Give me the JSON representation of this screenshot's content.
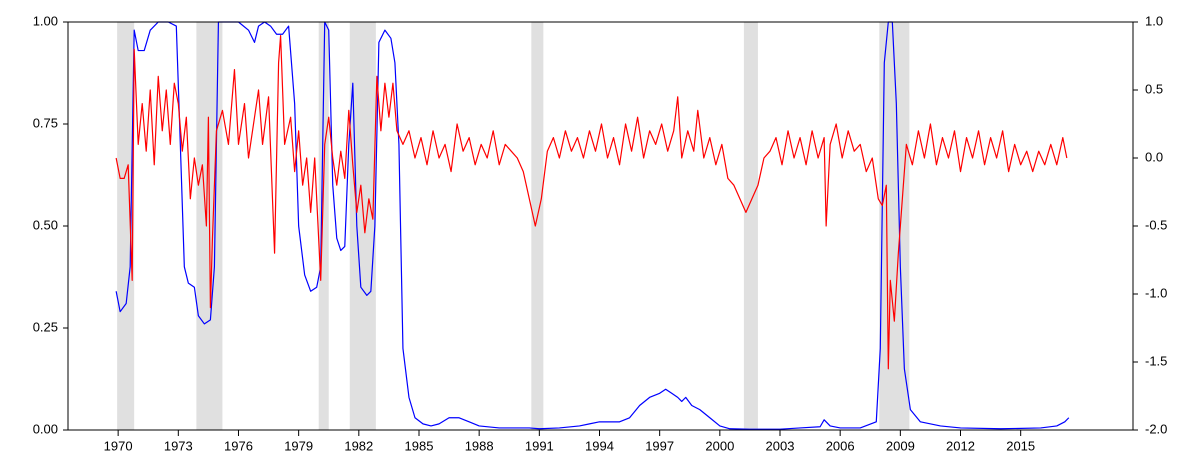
{
  "chart_data": {
    "type": "line",
    "xlim": [
      1967.5,
      2020.6
    ],
    "xticks": [
      1970,
      1973,
      1976,
      1979,
      1982,
      1985,
      1988,
      1991,
      1994,
      1997,
      2000,
      2003,
      2006,
      2009,
      2012,
      2015
    ],
    "ylim": [
      0,
      1
    ],
    "yticks": [
      {
        "value": 0,
        "label": "0.00"
      },
      {
        "value": 0.25,
        "label": "0.25"
      },
      {
        "value": 0.5,
        "label": "0.50"
      },
      {
        "value": 0.75,
        "label": "0.75"
      },
      {
        "value": 1,
        "label": "1.00"
      }
    ],
    "y2lim": [
      -2,
      1
    ],
    "y2ticks": [
      {
        "value": -2,
        "label": "-2.0"
      },
      {
        "value": -1.5,
        "label": "-1.5"
      },
      {
        "value": -1,
        "label": "-1.0"
      },
      {
        "value": -0.5,
        "label": "-0.5"
      },
      {
        "value": 0,
        "label": "0.0"
      },
      {
        "value": 0.5,
        "label": "0.5"
      },
      {
        "value": 1,
        "label": "1.0"
      }
    ],
    "shade_color": "#e0e0e0",
    "shaded_periods": [
      [
        1969.95,
        1970.8
      ],
      [
        1973.9,
        1975.2
      ],
      [
        1980.0,
        1980.5
      ],
      [
        1981.55,
        1982.85
      ],
      [
        1990.6,
        1991.2
      ],
      [
        2001.2,
        2001.9
      ],
      [
        2007.95,
        2009.45
      ]
    ],
    "series": [
      {
        "color": "#0000ff",
        "x": [
          1969.9,
          1970.1,
          1970.4,
          1970.6,
          1970.8,
          1971.0,
          1971.3,
          1971.6,
          1972.0,
          1972.5,
          1972.9,
          1973.1,
          1973.3,
          1973.5,
          1973.8,
          1974.0,
          1974.3,
          1974.6,
          1974.8,
          1975.0,
          1975.5,
          1976.0,
          1976.5,
          1976.8,
          1977.0,
          1977.3,
          1977.6,
          1977.9,
          1978.2,
          1978.5,
          1978.8,
          1979.0,
          1979.3,
          1979.6,
          1979.9,
          1980.1,
          1980.3,
          1980.5,
          1980.7,
          1980.9,
          1981.1,
          1981.3,
          1981.5,
          1981.7,
          1981.9,
          1982.1,
          1982.4,
          1982.6,
          1982.8,
          1983.0,
          1983.3,
          1983.6,
          1983.8,
          1984.0,
          1984.2,
          1984.5,
          1984.8,
          1985.2,
          1985.6,
          1986.0,
          1986.5,
          1987.0,
          1987.5,
          1988.0,
          1989.0,
          1990.0,
          1990.5,
          1991.0,
          1992.0,
          1993.0,
          1993.5,
          1994.0,
          1995.0,
          1995.5,
          1996.0,
          1996.5,
          1997.0,
          1997.3,
          1997.6,
          1997.9,
          1998.1,
          1998.3,
          1998.6,
          1999.0,
          1999.5,
          2000.0,
          2000.5,
          2001.5,
          2003.0,
          2004.0,
          2005.0,
          2005.2,
          2005.5,
          2006.0,
          2007.0,
          2007.8,
          2008.0,
          2008.2,
          2008.4,
          2008.6,
          2008.8,
          2009.0,
          2009.2,
          2009.5,
          2010.0,
          2011.0,
          2012.0,
          2014.0,
          2016.0,
          2016.8,
          2017.2,
          2017.4
        ],
        "values": [
          0.34,
          0.29,
          0.31,
          0.4,
          0.98,
          0.93,
          0.93,
          0.98,
          1.0,
          1.0,
          0.99,
          0.7,
          0.4,
          0.36,
          0.35,
          0.28,
          0.26,
          0.27,
          0.4,
          1.0,
          1.0,
          1.0,
          0.98,
          0.95,
          0.99,
          1.0,
          0.99,
          0.97,
          0.97,
          0.99,
          0.8,
          0.5,
          0.38,
          0.34,
          0.35,
          0.4,
          1.0,
          0.98,
          0.6,
          0.47,
          0.44,
          0.45,
          0.7,
          0.85,
          0.5,
          0.35,
          0.33,
          0.34,
          0.5,
          0.95,
          0.98,
          0.96,
          0.9,
          0.7,
          0.2,
          0.08,
          0.03,
          0.015,
          0.01,
          0.015,
          0.03,
          0.03,
          0.02,
          0.01,
          0.005,
          0.005,
          0.005,
          0.003,
          0.005,
          0.01,
          0.015,
          0.02,
          0.02,
          0.03,
          0.06,
          0.08,
          0.09,
          0.1,
          0.09,
          0.08,
          0.07,
          0.08,
          0.06,
          0.05,
          0.03,
          0.01,
          0.003,
          0.002,
          0.002,
          0.005,
          0.008,
          0.025,
          0.01,
          0.005,
          0.005,
          0.02,
          0.2,
          0.9,
          1.0,
          1.0,
          0.8,
          0.4,
          0.15,
          0.05,
          0.02,
          0.01,
          0.005,
          0.003,
          0.005,
          0.01,
          0.02,
          0.03
        ]
      },
      {
        "color": "#ff0000",
        "axis": "y2",
        "x": [
          1969.9,
          1970.1,
          1970.3,
          1970.5,
          1970.7,
          1970.8,
          1971.0,
          1971.2,
          1971.4,
          1971.6,
          1971.8,
          1972.0,
          1972.2,
          1972.4,
          1972.6,
          1972.8,
          1973.0,
          1973.2,
          1973.4,
          1973.6,
          1973.8,
          1974.0,
          1974.2,
          1974.4,
          1974.5,
          1974.6,
          1974.7,
          1974.9,
          1975.2,
          1975.5,
          1975.8,
          1976.0,
          1976.3,
          1976.5,
          1976.8,
          1977.0,
          1977.2,
          1977.5,
          1977.8,
          1978.0,
          1978.1,
          1978.3,
          1978.6,
          1978.8,
          1979.0,
          1979.2,
          1979.4,
          1979.6,
          1979.8,
          1980.1,
          1980.3,
          1980.5,
          1980.7,
          1980.9,
          1981.1,
          1981.3,
          1981.5,
          1981.7,
          1981.9,
          1982.1,
          1982.3,
          1982.5,
          1982.7,
          1982.9,
          1983.1,
          1983.3,
          1983.5,
          1983.7,
          1983.9,
          1984.2,
          1984.5,
          1984.8,
          1985.1,
          1985.4,
          1985.7,
          1986.0,
          1986.3,
          1986.6,
          1986.9,
          1987.2,
          1987.5,
          1987.8,
          1988.1,
          1988.4,
          1988.7,
          1989.0,
          1989.3,
          1989.6,
          1989.9,
          1990.2,
          1990.5,
          1990.8,
          1991.1,
          1991.4,
          1991.7,
          1992.0,
          1992.3,
          1992.6,
          1992.9,
          1993.2,
          1993.5,
          1993.8,
          1994.1,
          1994.4,
          1994.7,
          1995.0,
          1995.3,
          1995.6,
          1995.9,
          1996.2,
          1996.5,
          1996.8,
          1997.1,
          1997.4,
          1997.7,
          1997.9,
          1998.1,
          1998.4,
          1998.7,
          1998.9,
          1999.2,
          1999.5,
          1999.8,
          2000.1,
          2000.4,
          2000.7,
          2001.0,
          2001.3,
          2001.6,
          2001.9,
          2002.2,
          2002.5,
          2002.8,
          2003.1,
          2003.4,
          2003.7,
          2004.0,
          2004.3,
          2004.6,
          2004.9,
          2005.2,
          2005.3,
          2005.5,
          2005.8,
          2006.1,
          2006.4,
          2006.7,
          2007.0,
          2007.3,
          2007.6,
          2007.9,
          2008.1,
          2008.3,
          2008.4,
          2008.5,
          2008.7,
          2008.9,
          2009.1,
          2009.3,
          2009.6,
          2009.9,
          2010.2,
          2010.5,
          2010.8,
          2011.1,
          2011.4,
          2011.7,
          2012.0,
          2012.3,
          2012.6,
          2012.9,
          2013.2,
          2013.5,
          2013.8,
          2014.1,
          2014.4,
          2014.7,
          2015.0,
          2015.3,
          2015.6,
          2015.9,
          2016.2,
          2016.5,
          2016.8,
          2017.1,
          2017.3
        ],
        "values": [
          0.0,
          -0.15,
          -0.15,
          -0.05,
          -0.9,
          0.8,
          0.1,
          0.4,
          0.05,
          0.5,
          -0.05,
          0.6,
          0.2,
          0.5,
          0.1,
          0.55,
          0.4,
          0.05,
          0.3,
          -0.3,
          0.0,
          -0.2,
          -0.05,
          -0.5,
          0.3,
          -1.1,
          -0.6,
          0.2,
          0.35,
          0.1,
          0.65,
          0.1,
          0.4,
          0.0,
          0.3,
          0.5,
          0.1,
          0.45,
          -0.7,
          0.7,
          0.9,
          0.1,
          0.3,
          -0.1,
          0.2,
          -0.2,
          0.0,
          -0.4,
          0.0,
          -0.9,
          0.1,
          0.3,
          0.0,
          -0.2,
          0.05,
          -0.15,
          0.35,
          -0.05,
          -0.4,
          -0.2,
          -0.55,
          -0.3,
          -0.45,
          0.6,
          0.2,
          0.55,
          0.3,
          0.55,
          0.2,
          0.1,
          0.2,
          0.0,
          0.15,
          -0.05,
          0.2,
          0.0,
          0.1,
          -0.1,
          0.25,
          0.05,
          0.15,
          -0.05,
          0.1,
          0.0,
          0.2,
          -0.05,
          0.1,
          0.05,
          0.0,
          -0.1,
          -0.3,
          -0.5,
          -0.3,
          0.05,
          0.15,
          0.0,
          0.2,
          0.05,
          0.15,
          0.0,
          0.2,
          0.05,
          0.25,
          0.0,
          0.15,
          -0.05,
          0.25,
          0.05,
          0.3,
          0.0,
          0.2,
          0.1,
          0.25,
          0.05,
          0.2,
          0.45,
          0.0,
          0.2,
          0.05,
          0.35,
          0.0,
          0.15,
          -0.05,
          0.1,
          -0.15,
          -0.2,
          -0.3,
          -0.4,
          -0.3,
          -0.2,
          0.0,
          0.05,
          0.15,
          -0.05,
          0.2,
          0.0,
          0.15,
          -0.05,
          0.2,
          0.0,
          0.15,
          -0.5,
          0.1,
          0.25,
          0.0,
          0.2,
          0.05,
          0.1,
          -0.1,
          0.0,
          -0.3,
          -0.35,
          -0.2,
          -1.55,
          -0.9,
          -1.2,
          -0.7,
          -0.3,
          0.1,
          -0.05,
          0.2,
          0.0,
          0.25,
          -0.05,
          0.15,
          0.0,
          0.2,
          -0.1,
          0.15,
          0.0,
          0.2,
          -0.05,
          0.15,
          0.0,
          0.2,
          -0.1,
          0.1,
          -0.05,
          0.05,
          -0.1,
          0.05,
          -0.05,
          0.1,
          -0.05,
          0.15,
          0.0
        ]
      }
    ]
  }
}
